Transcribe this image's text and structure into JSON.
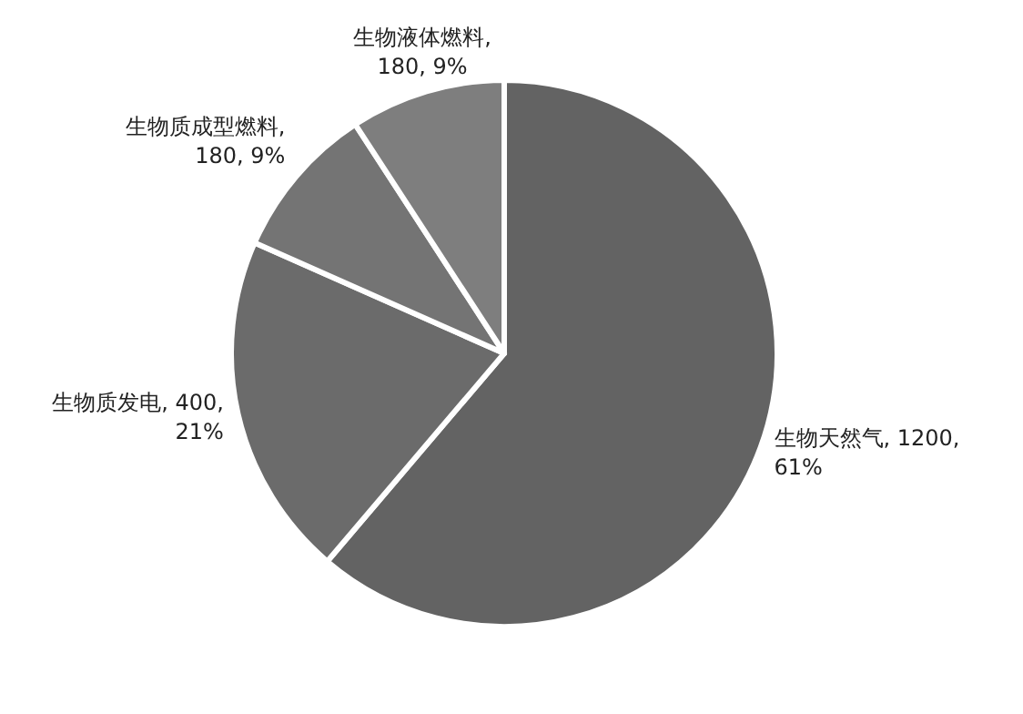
{
  "chart_data": {
    "type": "pie",
    "categories": [
      "生物天然气",
      "生物质发电",
      "生物质成型燃料",
      "生物液体燃料"
    ],
    "values": [
      1200,
      400,
      180,
      180
    ],
    "value_labels": [
      ", 1200, 61%",
      ", 400, 21%",
      ", 180, 9%",
      ", 180, 9%"
    ],
    "colors": [
      "#636363",
      "#6b6b6b",
      "#747474",
      "#7e7e7e"
    ]
  }
}
